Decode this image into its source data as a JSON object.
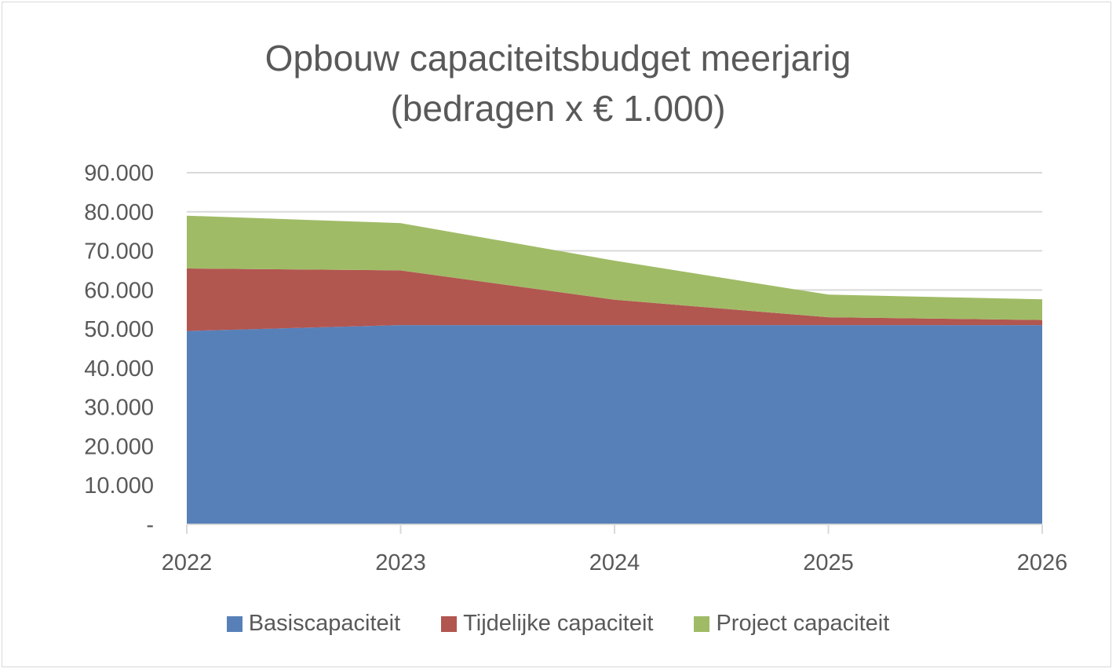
{
  "chart_data": {
    "type": "area",
    "stacked": true,
    "title_lines": [
      "Opbouw capaciteitsbudget meerjarig",
      "(bedragen x € 1.000)"
    ],
    "categories": [
      "2022",
      "2023",
      "2024",
      "2025",
      "2026"
    ],
    "y_ticks": [
      "-",
      "10.000",
      "20.000",
      "30.000",
      "40.000",
      "50.000",
      "60.000",
      "70.000",
      "80.000",
      "90.000"
    ],
    "ylim": [
      0,
      90000
    ],
    "grid": true,
    "legend_position": "bottom",
    "series": [
      {
        "name": "Basiscapaciteit",
        "color": "#5880b8",
        "values": [
          49500,
          51000,
          51000,
          51000,
          51000
        ]
      },
      {
        "name": "Tijdelijke capaciteit",
        "color": "#b25650",
        "values": [
          16000,
          14000,
          6500,
          2000,
          1300
        ]
      },
      {
        "name": "Project capaciteit",
        "color": "#a0bb66",
        "values": [
          13500,
          12100,
          10000,
          5800,
          5300
        ]
      }
    ]
  }
}
